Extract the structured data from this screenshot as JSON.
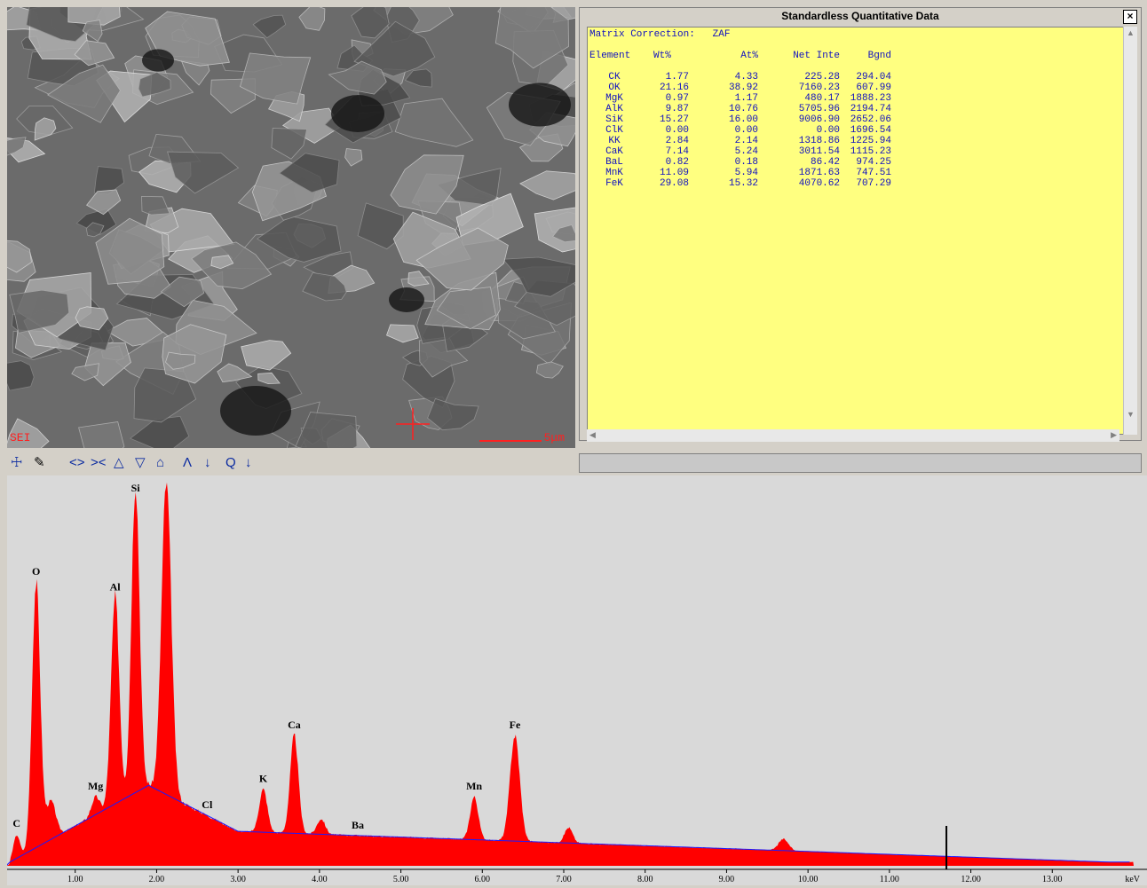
{
  "sem": {
    "mode_label": "SEI",
    "scale_label": "5μm"
  },
  "report": {
    "title": "Standardless Quantitative Data",
    "close_glyph": "×",
    "matrix_label": "Matrix Correction:",
    "matrix_value": "ZAF",
    "columns": [
      "Element",
      "Wt%",
      "At%",
      "Net Inte",
      "Bgnd"
    ],
    "rows": [
      {
        "element": "CK",
        "wt": "1.77",
        "at": "4.33",
        "net": "225.28",
        "bgnd": "294.04"
      },
      {
        "element": "OK",
        "wt": "21.16",
        "at": "38.92",
        "net": "7160.23",
        "bgnd": "607.99"
      },
      {
        "element": "MgK",
        "wt": "0.97",
        "at": "1.17",
        "net": "480.17",
        "bgnd": "1888.23"
      },
      {
        "element": "AlK",
        "wt": "9.87",
        "at": "10.76",
        "net": "5705.96",
        "bgnd": "2194.74"
      },
      {
        "element": "SiK",
        "wt": "15.27",
        "at": "16.00",
        "net": "9006.90",
        "bgnd": "2652.06"
      },
      {
        "element": "ClK",
        "wt": "0.00",
        "at": "0.00",
        "net": "0.00",
        "bgnd": "1696.54"
      },
      {
        "element": "KK",
        "wt": "2.84",
        "at": "2.14",
        "net": "1318.86",
        "bgnd": "1225.94"
      },
      {
        "element": "CaK",
        "wt": "7.14",
        "at": "5.24",
        "net": "3011.54",
        "bgnd": "1115.23"
      },
      {
        "element": "BaL",
        "wt": "0.82",
        "at": "0.18",
        "net": "86.42",
        "bgnd": "974.25"
      },
      {
        "element": "MnK",
        "wt": "11.09",
        "at": "5.94",
        "net": "1871.63",
        "bgnd": "747.51"
      },
      {
        "element": "FeK",
        "wt": "29.08",
        "at": "15.32",
        "net": "4070.62",
        "bgnd": "707.29"
      }
    ]
  },
  "toolbar": {
    "icons": [
      "probe-icon",
      "marker-icon",
      "expand-horizontal-icon",
      "shrink-horizontal-icon",
      "expand-vertical-icon",
      "shrink-vertical-icon",
      "home-icon",
      "peak-id-icon",
      "down-arrow-icon",
      "zoom-icon",
      "down-arrow-icon"
    ]
  },
  "colors": {
    "spectrum_fill": "#ff0000",
    "background_line": "#1a1aff",
    "fit_line": "#33c0c0",
    "report_bg": "#ffff80"
  },
  "chart_data": {
    "type": "area",
    "x_unit": "keV",
    "xlim": [
      0,
      14
    ],
    "x_ticks": [
      "1.00",
      "2.00",
      "3.00",
      "4.00",
      "5.00",
      "6.00",
      "7.00",
      "8.00",
      "9.00",
      "10.00",
      "11.00",
      "12.00",
      "13.00"
    ],
    "x_tick_values": [
      1,
      2,
      3,
      4,
      5,
      6,
      7,
      8,
      9,
      10,
      11,
      12,
      13
    ],
    "marker_kev": 11.7,
    "peaks": [
      {
        "label": "C",
        "kev": 0.28,
        "height": 0.08
      },
      {
        "label": "O",
        "kev": 0.52,
        "height": 0.74
      },
      {
        "label": "Mg",
        "kev": 1.25,
        "height": 0.18
      },
      {
        "label": "Al",
        "kev": 1.49,
        "height": 0.7
      },
      {
        "label": "Si",
        "kev": 1.74,
        "height": 1.0
      },
      {
        "label": "",
        "kev": 2.12,
        "height": 1.0
      },
      {
        "label": "Cl",
        "kev": 2.62,
        "height": 0.1
      },
      {
        "label": "K",
        "kev": 3.31,
        "height": 0.2
      },
      {
        "label": "Ca",
        "kev": 3.69,
        "height": 0.34
      },
      {
        "label": "Ba",
        "kev": 4.47,
        "height": 0.05
      },
      {
        "label": "Mn",
        "kev": 5.9,
        "height": 0.18
      },
      {
        "label": "Fe",
        "kev": 6.4,
        "height": 0.34
      }
    ]
  }
}
